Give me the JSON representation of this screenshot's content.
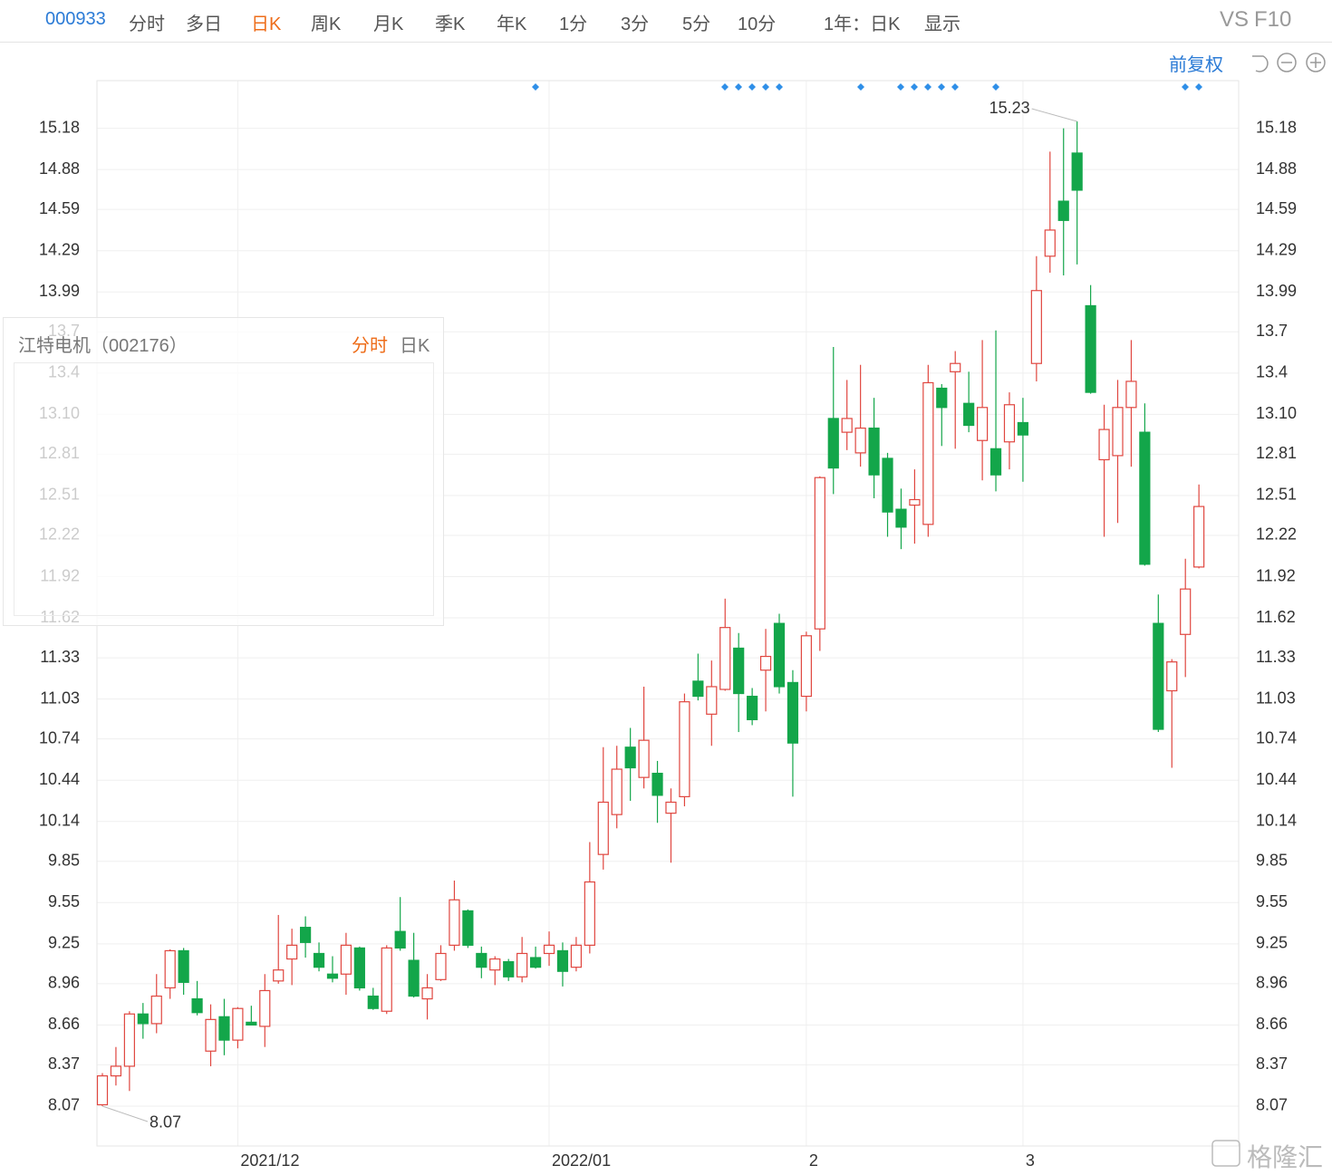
{
  "toolbar": {
    "code": "000933",
    "periods": [
      "分时",
      "多日",
      "日K",
      "周K",
      "月K",
      "季K",
      "年K",
      "1分",
      "3分",
      "5分",
      "10分"
    ],
    "range": "1年：日K",
    "display": "显示",
    "vs": "VS",
    "f10": "F10"
  },
  "adjust": "前复权",
  "panel": {
    "title": "江特电机（002176）",
    "tabs": [
      "分时",
      "日K"
    ]
  },
  "watermark": "格隆汇",
  "chart_data": {
    "type": "candlestick",
    "categories": [
      null,
      null,
      null,
      null,
      null,
      null,
      null,
      null,
      null,
      null,
      "2021/12",
      null,
      null,
      null,
      null,
      null,
      null,
      null,
      null,
      null,
      null,
      null,
      null,
      null,
      null,
      null,
      null,
      null,
      null,
      null,
      null,
      null,
      null,
      "2022/01",
      null,
      null,
      null,
      null,
      null,
      null,
      null,
      null,
      null,
      null,
      null,
      null,
      null,
      null,
      null,
      null,
      null,
      null,
      "2",
      null,
      null,
      null,
      null,
      null,
      null,
      null,
      null,
      null,
      null,
      null,
      null,
      null,
      null,
      null,
      "3",
      null,
      null,
      null,
      null,
      null,
      null,
      null,
      null,
      null,
      null,
      null,
      null,
      null
    ],
    "open": [
      8.08,
      8.29,
      8.36,
      8.74,
      8.67,
      8.93,
      9.2,
      8.85,
      8.47,
      8.72,
      8.55,
      8.68,
      8.65,
      8.98,
      9.14,
      9.37,
      9.18,
      9.03,
      9.03,
      9.22,
      8.87,
      8.76,
      9.34,
      9.13,
      8.85,
      8.99,
      9.24,
      9.49,
      9.18,
      9.06,
      9.12,
      9.01,
      9.15,
      9.18,
      9.2,
      9.08,
      9.24,
      9.9,
      10.19,
      10.68,
      10.46,
      10.49,
      10.2,
      10.32,
      11.16,
      10.92,
      11.1,
      11.4,
      11.05,
      11.24,
      11.58,
      11.15,
      11.05,
      11.54,
      13.07,
      12.97,
      12.82,
      13.0,
      12.78,
      12.41,
      12.44,
      12.3,
      13.29,
      13.41,
      13.18,
      12.91,
      12.85,
      12.9,
      13.04,
      13.47,
      14.25,
      14.65,
      15.0,
      13.89,
      12.77,
      12.8,
      13.15,
      12.97,
      11.58,
      11.09,
      11.5,
      11.99
    ],
    "high": [
      8.31,
      8.5,
      8.76,
      8.82,
      9.03,
      9.21,
      9.22,
      8.98,
      8.81,
      8.85,
      8.79,
      8.8,
      9.03,
      9.46,
      9.36,
      9.45,
      9.26,
      9.16,
      9.33,
      9.23,
      8.93,
      9.24,
      9.59,
      9.33,
      9.03,
      9.24,
      9.71,
      9.5,
      9.23,
      9.16,
      9.14,
      9.3,
      9.23,
      9.34,
      9.26,
      9.3,
      9.99,
      10.68,
      10.69,
      10.82,
      11.12,
      10.58,
      10.38,
      11.07,
      11.36,
      11.31,
      11.76,
      11.51,
      11.11,
      11.54,
      11.65,
      11.24,
      11.52,
      12.65,
      13.59,
      13.35,
      13.46,
      13.22,
      12.82,
      12.56,
      12.7,
      13.46,
      13.32,
      13.56,
      13.41,
      13.64,
      13.71,
      13.26,
      13.22,
      14.25,
      15.01,
      15.18,
      15.23,
      14.04,
      13.17,
      13.35,
      13.64,
      13.18,
      11.79,
      11.32,
      12.05,
      12.59
    ],
    "low": [
      8.07,
      8.22,
      8.18,
      8.56,
      8.6,
      8.85,
      8.88,
      8.73,
      8.36,
      8.44,
      8.49,
      8.66,
      8.5,
      8.96,
      8.95,
      9.15,
      9.05,
      8.97,
      8.88,
      8.91,
      8.77,
      8.74,
      9.2,
      8.86,
      8.7,
      8.98,
      9.2,
      9.22,
      9.0,
      8.95,
      8.98,
      8.97,
      9.07,
      9.09,
      8.94,
      9.05,
      9.18,
      9.79,
      10.09,
      10.29,
      10.38,
      10.13,
      9.84,
      10.25,
      11.02,
      10.69,
      11.09,
      10.79,
      10.84,
      10.94,
      11.07,
      10.32,
      10.94,
      11.38,
      12.52,
      12.84,
      12.72,
      12.49,
      12.21,
      12.12,
      12.16,
      12.21,
      12.87,
      12.85,
      12.97,
      12.62,
      12.54,
      12.7,
      12.61,
      13.34,
      14.13,
      14.11,
      14.19,
      13.25,
      12.21,
      12.31,
      12.72,
      12.0,
      10.79,
      10.53,
      11.19,
      11.98
    ],
    "close": [
      8.29,
      8.36,
      8.74,
      8.67,
      8.87,
      9.2,
      8.97,
      8.75,
      8.7,
      8.55,
      8.78,
      8.66,
      8.91,
      9.06,
      9.24,
      9.26,
      9.08,
      9.0,
      9.24,
      8.93,
      8.78,
      9.22,
      9.22,
      8.87,
      8.93,
      9.18,
      9.57,
      9.24,
      9.08,
      9.14,
      9.01,
      9.18,
      9.08,
      9.24,
      9.05,
      9.24,
      9.7,
      10.28,
      10.52,
      10.53,
      10.73,
      10.33,
      10.28,
      11.01,
      11.05,
      11.12,
      11.55,
      11.07,
      10.88,
      11.34,
      11.12,
      10.71,
      11.49,
      12.64,
      12.71,
      13.07,
      13.0,
      12.66,
      12.39,
      12.28,
      12.48,
      13.33,
      13.15,
      13.47,
      13.02,
      13.15,
      12.66,
      13.17,
      12.95,
      14.0,
      14.44,
      14.51,
      14.73,
      13.26,
      12.99,
      13.15,
      13.34,
      12.01,
      10.81,
      11.3,
      11.83,
      12.43
    ],
    "annotations": {
      "high": "15.23",
      "low": "8.07"
    },
    "up_color": "#e0463f",
    "down_color": "#13a64a",
    "ylim": [
      7.78,
      15.52
    ],
    "yticks": [
      8.07,
      8.37,
      8.66,
      8.96,
      9.25,
      9.55,
      9.85,
      10.14,
      10.44,
      10.74,
      11.03,
      11.33,
      11.62,
      11.92,
      12.22,
      12.51,
      12.81,
      {
        "value": 13.1,
        "label": "13.10"
      },
      13.4,
      13.7,
      13.99,
      14.29,
      14.59,
      14.88,
      15.18
    ],
    "grid": true
  }
}
